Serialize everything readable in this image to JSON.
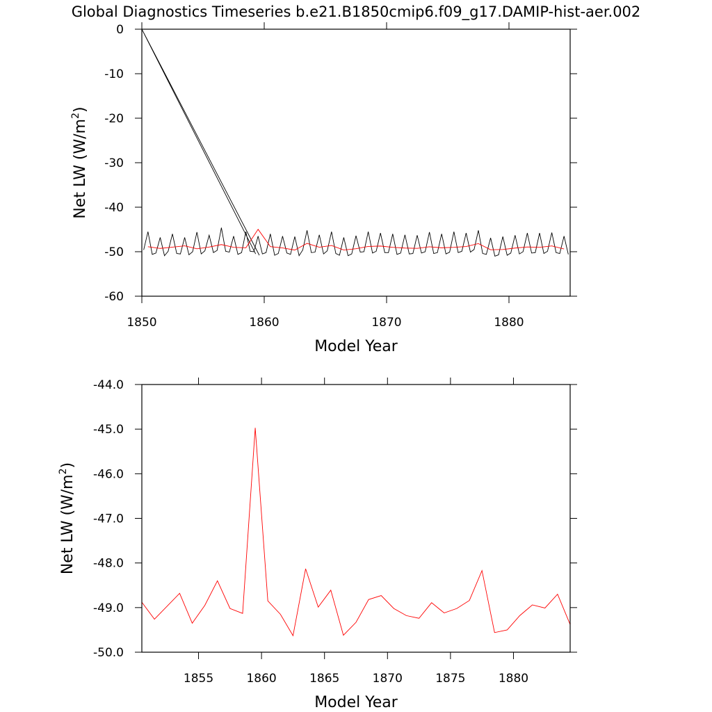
{
  "chart_data": [
    {
      "type": "line",
      "title": "Global Diagnostics Timeseries b.e21.B1850cmip6.f09_g17.DAMIP-hist-aer.002",
      "xlabel": "Model Year",
      "ylabel": [
        "Net LW (W/m",
        "2",
        ")"
      ],
      "xlim": [
        1850,
        1885
      ],
      "xticks": [
        1850,
        1860,
        1870,
        1880
      ],
      "ylim": [
        -60,
        0
      ],
      "yticks": [
        0,
        -10,
        -20,
        -30,
        -40,
        -50,
        -60
      ],
      "series": [
        {
          "color": "#000000",
          "x": [
            1850,
            1859.3,
            1859.3,
            1850,
            1859.6,
            1859.6,
            1850.15,
            1850.5,
            1850.85,
            1851.15,
            1851.5,
            1851.85,
            1852.15,
            1852.5,
            1852.85,
            1853.15,
            1853.5,
            1853.85,
            1854.15,
            1854.5,
            1854.85,
            1855.15,
            1855.5,
            1855.85,
            1856.15,
            1856.5,
            1856.85,
            1857.15,
            1857.5,
            1857.85,
            1858.15,
            1858.5,
            1858.85,
            1859.15,
            1859.5,
            1859.85,
            1860.15,
            1860.5,
            1860.85,
            1861.15,
            1861.5,
            1861.85,
            1862.15,
            1862.5,
            1862.85,
            1863.15,
            1863.5,
            1863.85,
            1864.15,
            1864.5,
            1864.85,
            1865.15,
            1865.5,
            1865.85,
            1866.15,
            1866.5,
            1866.85,
            1867.15,
            1867.5,
            1867.85,
            1868.15,
            1868.5,
            1868.85,
            1869.15,
            1869.5,
            1869.85,
            1870.15,
            1870.5,
            1870.85,
            1871.15,
            1871.5,
            1871.85,
            1872.15,
            1872.5,
            1872.85,
            1873.15,
            1873.5,
            1873.85,
            1874.15,
            1874.5,
            1874.85,
            1875.15,
            1875.5,
            1875.85,
            1876.15,
            1876.5,
            1876.85,
            1877.15,
            1877.5,
            1877.85,
            1878.15,
            1878.5,
            1878.85,
            1879.15,
            1879.5,
            1879.85,
            1880.15,
            1880.5,
            1880.85,
            1881.15,
            1881.5,
            1881.85,
            1882.15,
            1882.5,
            1882.85,
            1883.15,
            1883.5,
            1883.85,
            1884.15,
            1884.5,
            1884.85
          ],
          "values": [
            0,
            -50.5,
            null,
            0,
            -50.8,
            null,
            -49.6,
            -45.5,
            -50.6,
            -50.3,
            -46.8,
            -50.9,
            -49.9,
            -46.0,
            -50.4,
            -50.5,
            -46.8,
            -50.7,
            -50.0,
            -45.6,
            -50.5,
            -49.8,
            -46.3,
            -50.2,
            -49.7,
            -44.6,
            -49.9,
            -50.1,
            -46.5,
            -50.6,
            -50.2,
            -45.5,
            -49.9,
            -50.0,
            -46.5,
            -50.5,
            -50.2,
            -46.0,
            -50.8,
            -50.4,
            -46.5,
            -50.3,
            -50.6,
            -46.6,
            -50.9,
            -49.6,
            -45.2,
            -50.2,
            -50.1,
            -46.2,
            -50.5,
            -49.8,
            -45.5,
            -50.4,
            -50.8,
            -46.8,
            -50.9,
            -50.5,
            -46.4,
            -50.1,
            -50.0,
            -45.5,
            -50.3,
            -49.9,
            -45.8,
            -50.2,
            -50.2,
            -46.0,
            -50.6,
            -50.3,
            -46.2,
            -50.5,
            -50.4,
            -46.3,
            -50.3,
            -50.0,
            -45.6,
            -50.4,
            -50.2,
            -46.0,
            -50.5,
            -50.1,
            -45.5,
            -50.2,
            -49.9,
            -45.8,
            -50.1,
            -49.5,
            -45.2,
            -50.4,
            -50.6,
            -46.9,
            -51.0,
            -50.7,
            -46.6,
            -50.8,
            -50.3,
            -46.3,
            -50.5,
            -50.0,
            -45.8,
            -50.3,
            -50.2,
            -45.8,
            -50.4,
            -49.9,
            -45.7,
            -50.2,
            -50.4,
            -46.5,
            -50.6
          ]
        },
        {
          "color": "#ff0000",
          "x": [
            1850.5,
            1851.5,
            1852.5,
            1853.5,
            1854.5,
            1855.5,
            1856.5,
            1857.5,
            1858.5,
            1859.5,
            1860.5,
            1861.5,
            1862.5,
            1863.5,
            1864.5,
            1865.5,
            1866.5,
            1867.5,
            1868.5,
            1869.5,
            1870.5,
            1871.5,
            1872.5,
            1873.5,
            1874.5,
            1875.5,
            1876.5,
            1877.5,
            1878.5,
            1879.5,
            1880.5,
            1881.5,
            1882.5,
            1883.5,
            1884.5
          ],
          "values": [
            -48.88,
            -49.26,
            -48.97,
            -48.68,
            -49.35,
            -48.95,
            -48.4,
            -49.02,
            -49.13,
            -44.97,
            -48.85,
            -49.15,
            -49.63,
            -48.13,
            -48.99,
            -48.61,
            -49.62,
            -49.33,
            -48.82,
            -48.73,
            -49.02,
            -49.18,
            -49.24,
            -48.89,
            -49.12,
            -49.02,
            -48.84,
            -48.17,
            -49.56,
            -49.5,
            -49.18,
            -48.94,
            -49.01,
            -48.7,
            -49.38
          ]
        }
      ]
    },
    {
      "type": "line",
      "xlabel": "Model Year",
      "ylabel": [
        "Net LW (W/m",
        "2",
        ")"
      ],
      "xlim": [
        1850.5,
        1884.5
      ],
      "xticks": [
        1855,
        1860,
        1865,
        1870,
        1875,
        1880
      ],
      "ylim": [
        -50,
        -44
      ],
      "yticks": [
        {
          "value": -44,
          "label": "-44.0"
        },
        {
          "value": -45,
          "label": "-45.0"
        },
        {
          "value": -46,
          "label": "-46.0"
        },
        {
          "value": -47,
          "label": "-47.0"
        },
        {
          "value": -48,
          "label": "-48.0"
        },
        {
          "value": -49,
          "label": "-49.0"
        },
        {
          "value": -50,
          "label": "-50.0"
        }
      ],
      "x": [
        1850.5,
        1851.5,
        1852.5,
        1853.5,
        1854.5,
        1855.5,
        1856.5,
        1857.5,
        1858.5,
        1859.5,
        1860.5,
        1861.5,
        1862.5,
        1863.5,
        1864.5,
        1865.5,
        1866.5,
        1867.5,
        1868.5,
        1869.5,
        1870.5,
        1871.5,
        1872.5,
        1873.5,
        1874.5,
        1875.5,
        1876.5,
        1877.5,
        1878.5,
        1879.5,
        1880.5,
        1881.5,
        1882.5,
        1883.5,
        1884.5
      ],
      "series": [
        {
          "color": "#ff0000",
          "values": [
            -48.88,
            -49.26,
            -48.97,
            -48.68,
            -49.35,
            -48.95,
            -48.4,
            -49.02,
            -49.13,
            -44.97,
            -48.85,
            -49.15,
            -49.63,
            -48.13,
            -48.99,
            -48.61,
            -49.62,
            -49.33,
            -48.82,
            -48.73,
            -49.02,
            -49.18,
            -49.24,
            -48.89,
            -49.12,
            -49.02,
            -48.84,
            -48.17,
            -49.56,
            -49.5,
            -49.18,
            -48.94,
            -49.01,
            -48.7,
            -49.38
          ]
        }
      ]
    }
  ]
}
